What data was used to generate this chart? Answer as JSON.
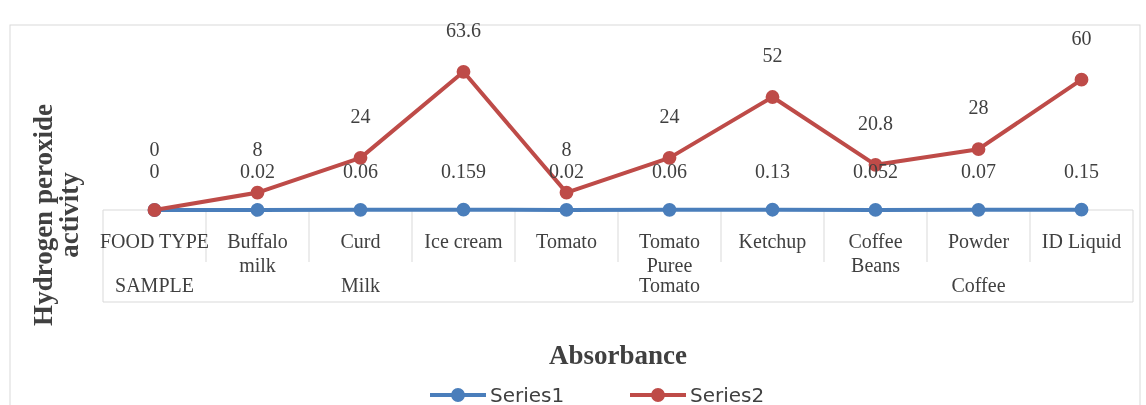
{
  "chart_data": {
    "type": "line",
    "xlabel": "Absorbance",
    "ylabel": "Hydrogen peroxide activity",
    "categories": [
      "FOOD TYPE",
      "Buffalo milk",
      "Curd",
      "Ice cream",
      "Tomato",
      "Tomato Puree",
      "Ketchup",
      "Coffee Beans",
      "Powder",
      "ID Liquid"
    ],
    "series": [
      {
        "name": "Series1",
        "color": "#4a7ebb",
        "values": [
          0,
          0.02,
          0.06,
          0.159,
          0.02,
          0.06,
          0.13,
          0.052,
          0.07,
          0.15
        ]
      },
      {
        "name": "Series2",
        "color": "#be4b48",
        "values": [
          0,
          8,
          24,
          63.6,
          8,
          24,
          52,
          20.8,
          28,
          60
        ]
      }
    ],
    "data_labels": true,
    "marker": "circle",
    "legend": "bottom",
    "annotations": [
      "SAMPLE",
      "Milk",
      "Tomato",
      "Coffee"
    ]
  }
}
